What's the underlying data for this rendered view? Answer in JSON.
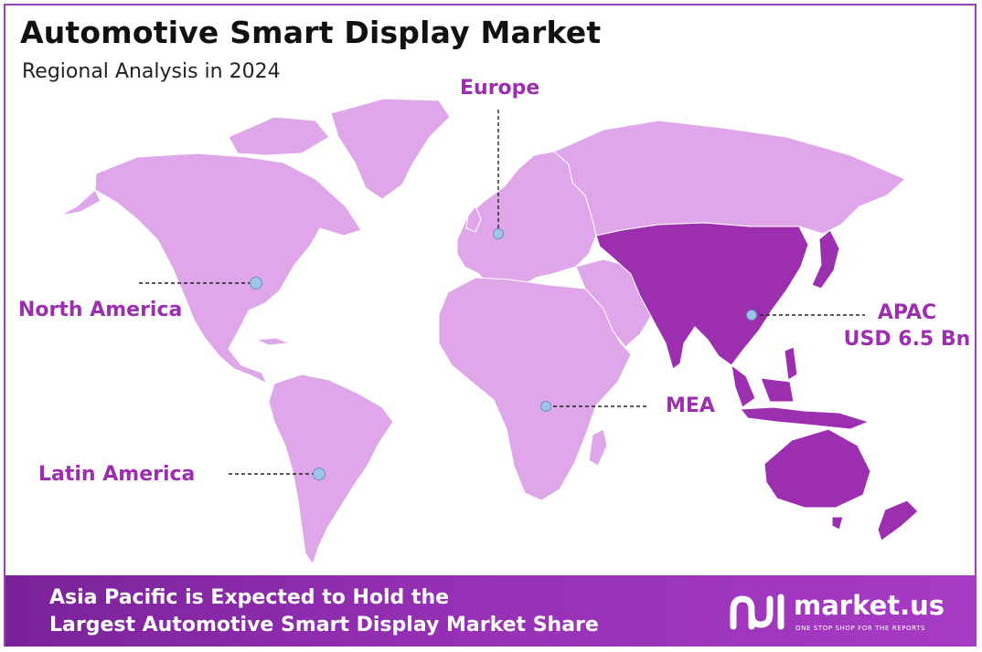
{
  "header": {
    "title": "Automotive Smart Display Market",
    "subtitle": "Regional Analysis in 2024"
  },
  "regions": {
    "europe": {
      "label": "Europe"
    },
    "north_america": {
      "label": "North America"
    },
    "apac": {
      "label": "APAC",
      "value": "USD 6.5 Bn"
    },
    "mea": {
      "label": "MEA"
    },
    "latin_america": {
      "label": "Latin America"
    }
  },
  "footer": {
    "line1": "Asia Pacific is Expected to Hold the",
    "line2": "Largest Automotive Smart Display Market Share"
  },
  "logo": {
    "name": "market.us",
    "tagline": "ONE STOP SHOP FOR THE REPORTS"
  },
  "colors": {
    "map_light": "#dfa6ea",
    "map_highlight": "#9b2fb0",
    "label_text": "#9b2fb0",
    "marker": "#9ec4ea",
    "banner": "#9530b4"
  }
}
